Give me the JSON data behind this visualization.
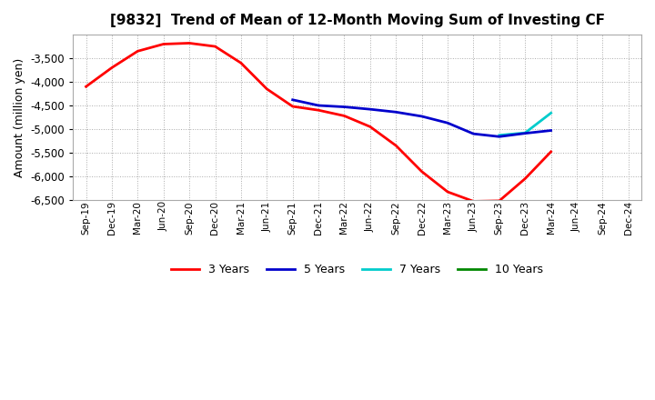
{
  "title": "[9832]  Trend of Mean of 12-Month Moving Sum of Investing CF",
  "ylabel": "Amount (million yen)",
  "ylim": [
    -6500,
    -3000
  ],
  "yticks": [
    -6500,
    -6000,
    -5500,
    -5000,
    -4500,
    -4000,
    -3500
  ],
  "background_color": "#ffffff",
  "plot_bg_color": "#ffffff",
  "x_labels": [
    "Sep-19",
    "Dec-19",
    "Mar-20",
    "Jun-20",
    "Sep-20",
    "Dec-20",
    "Mar-21",
    "Jun-21",
    "Sep-21",
    "Dec-21",
    "Mar-22",
    "Jun-22",
    "Sep-22",
    "Dec-22",
    "Mar-23",
    "Jun-23",
    "Sep-23",
    "Dec-23",
    "Mar-24",
    "Jun-24",
    "Sep-24",
    "Dec-24"
  ],
  "red_3yr": [
    -4100,
    -3700,
    -3350,
    -3200,
    -3180,
    -3250,
    -3600,
    -4150,
    -4520,
    -4600,
    -4720,
    -4950,
    -5350,
    -5900,
    -6330,
    -6530,
    -6520,
    -6050,
    -5480,
    null,
    null,
    null
  ],
  "blue_5yr": [
    null,
    null,
    null,
    null,
    null,
    null,
    null,
    null,
    -4380,
    -4500,
    -4530,
    -4580,
    -4640,
    -4730,
    -4870,
    -5100,
    -5160,
    -5090,
    -5030,
    null,
    null,
    null
  ],
  "cyan_7yr": [
    null,
    null,
    null,
    null,
    null,
    null,
    null,
    null,
    null,
    null,
    null,
    null,
    null,
    null,
    null,
    null,
    -5130,
    -5080,
    -4660,
    null,
    null,
    null
  ],
  "green_10yr": [
    null,
    null,
    null,
    null,
    null,
    null,
    null,
    null,
    null,
    null,
    null,
    null,
    null,
    null,
    null,
    null,
    null,
    null,
    null,
    null,
    null,
    null
  ],
  "colors": {
    "3yr": "#ff0000",
    "5yr": "#0000cc",
    "7yr": "#00cccc",
    "10yr": "#008800"
  },
  "labels": {
    "3yr": "3 Years",
    "5yr": "5 Years",
    "7yr": "7 Years",
    "10yr": "10 Years"
  }
}
